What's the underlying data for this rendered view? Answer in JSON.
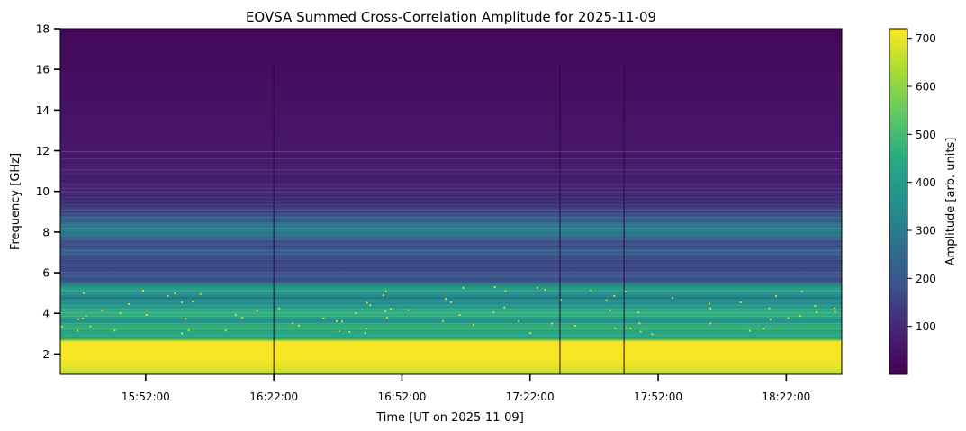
{
  "chart_data": {
    "type": "heatmap",
    "title": "EOVSA Summed Cross-Correlation Amplitude for 2025-11-09",
    "xlabel": "Time [UT on 2025-11-09]",
    "ylabel": "Frequency [GHz]",
    "colorbar_label": "Amplitude [arb. units]",
    "colormap": "viridis",
    "x_range": [
      "15:32:00",
      "18:35:00"
    ],
    "x_ticks": [
      "15:52:00",
      "16:22:00",
      "16:52:00",
      "17:22:00",
      "17:52:00",
      "18:22:00"
    ],
    "ylim": [
      1.0,
      18.0
    ],
    "y_ticks": [
      2,
      4,
      6,
      8,
      10,
      12,
      14,
      16,
      18
    ],
    "colorbar_range": [
      0,
      720
    ],
    "colorbar_ticks": [
      100,
      200,
      300,
      400,
      500,
      600,
      700
    ],
    "frequency_profile": [
      {
        "f": 1.1,
        "amp": 660
      },
      {
        "f": 1.4,
        "amp": 700
      },
      {
        "f": 2.0,
        "amp": 715
      },
      {
        "f": 2.6,
        "amp": 715
      },
      {
        "f": 2.75,
        "amp": 460
      },
      {
        "f": 3.0,
        "amp": 420
      },
      {
        "f": 3.3,
        "amp": 480
      },
      {
        "f": 3.6,
        "amp": 360
      },
      {
        "f": 4.0,
        "amp": 470
      },
      {
        "f": 4.4,
        "amp": 360
      },
      {
        "f": 4.8,
        "amp": 330
      },
      {
        "f": 5.3,
        "amp": 420
      },
      {
        "f": 5.5,
        "amp": 200
      },
      {
        "f": 6.0,
        "amp": 170
      },
      {
        "f": 6.5,
        "amp": 160
      },
      {
        "f": 7.0,
        "amp": 210
      },
      {
        "f": 7.5,
        "amp": 170
      },
      {
        "f": 8.0,
        "amp": 320
      },
      {
        "f": 8.5,
        "amp": 250
      },
      {
        "f": 9.0,
        "amp": 150
      },
      {
        "f": 10.0,
        "amp": 95
      },
      {
        "f": 11.0,
        "amp": 75
      },
      {
        "f": 12.0,
        "amp": 60
      },
      {
        "f": 14.0,
        "amp": 45
      },
      {
        "f": 16.0,
        "amp": 32
      },
      {
        "f": 18.0,
        "amp": 20
      }
    ],
    "dropouts_time": [
      "16:22:00",
      "17:29:00",
      "17:44:00"
    ]
  }
}
